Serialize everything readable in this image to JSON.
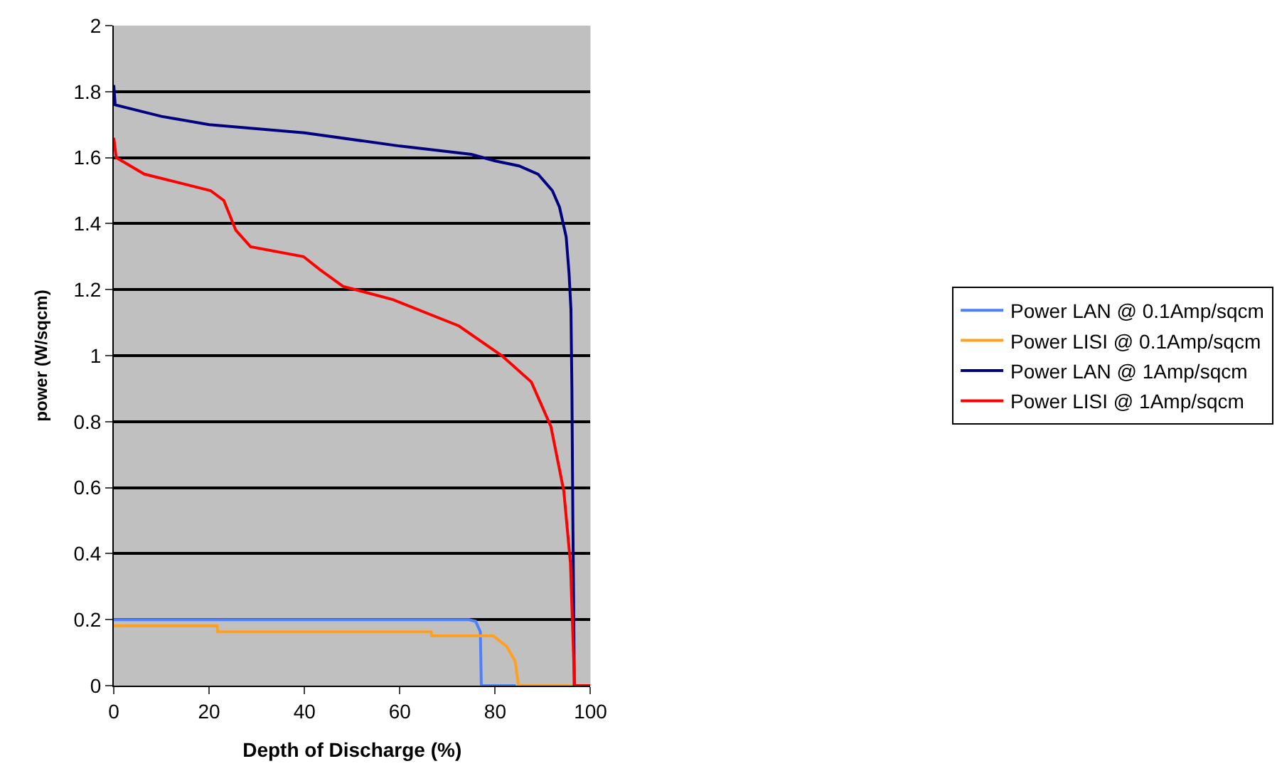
{
  "chart_data": {
    "type": "line",
    "xlabel": "Depth of Discharge (%)",
    "ylabel": "power (W/sqcm)",
    "xlim": [
      0,
      100
    ],
    "xticks": [
      0,
      20,
      40,
      60,
      80,
      100
    ],
    "ylim": [
      0,
      2
    ],
    "yticks": [
      0,
      0.2,
      0.4,
      0.6,
      0.8,
      1,
      1.2,
      1.4,
      1.6,
      1.8,
      2
    ],
    "grid": "y",
    "legend": "right",
    "line_style": "solid",
    "marker": "none",
    "series": [
      {
        "name": "Power LAN @ 0.1Amp/sqcm",
        "color": "#4d7fff",
        "x": [
          0,
          20,
          40,
          60,
          74.5,
          75.9,
          76.9,
          77.1,
          84.3
        ],
        "values": [
          0.2,
          0.2,
          0.2,
          0.2,
          0.2,
          0.195,
          0.163,
          0,
          0
        ]
      },
      {
        "name": "Power LISI @ 0.1Amp/sqcm",
        "color": "#ffa020",
        "x": [
          0,
          21.7,
          21.8,
          66.6,
          66.7,
          79.6,
          82.4,
          84.2,
          84.9,
          96.5
        ],
        "values": [
          0.181,
          0.181,
          0.163,
          0.163,
          0.151,
          0.151,
          0.119,
          0.074,
          0,
          0
        ]
      },
      {
        "name": "Power LAN @ 1Amp/sqcm",
        "color": "#000080",
        "x": [
          0,
          0.3,
          10,
          20,
          40,
          60,
          75,
          80,
          85,
          89,
          92,
          93.5,
          94.9,
          95.5,
          95.9,
          96.1,
          96.3,
          96.5,
          96.6
        ],
        "values": [
          1.82,
          1.76,
          1.725,
          1.7,
          1.675,
          1.635,
          1.61,
          1.59,
          1.575,
          1.55,
          1.5,
          1.45,
          1.36,
          1.25,
          1.14,
          0.9,
          0.5,
          0.2,
          0
        ]
      },
      {
        "name": "Power LISI @ 1Amp/sqcm",
        "color": "#ff0000",
        "x": [
          0,
          0.5,
          6.4,
          20.3,
          23.1,
          25.6,
          28.7,
          39.8,
          43.3,
          48.1,
          58.5,
          72.4,
          81.4,
          87.6,
          91.7,
          94.4,
          95.8,
          96.5,
          96.7,
          100
        ],
        "values": [
          1.66,
          1.6,
          1.55,
          1.5,
          1.47,
          1.38,
          1.33,
          1.3,
          1.26,
          1.21,
          1.17,
          1.09,
          1.0,
          0.92,
          0.785,
          0.59,
          0.37,
          0.07,
          0,
          0
        ]
      }
    ]
  }
}
